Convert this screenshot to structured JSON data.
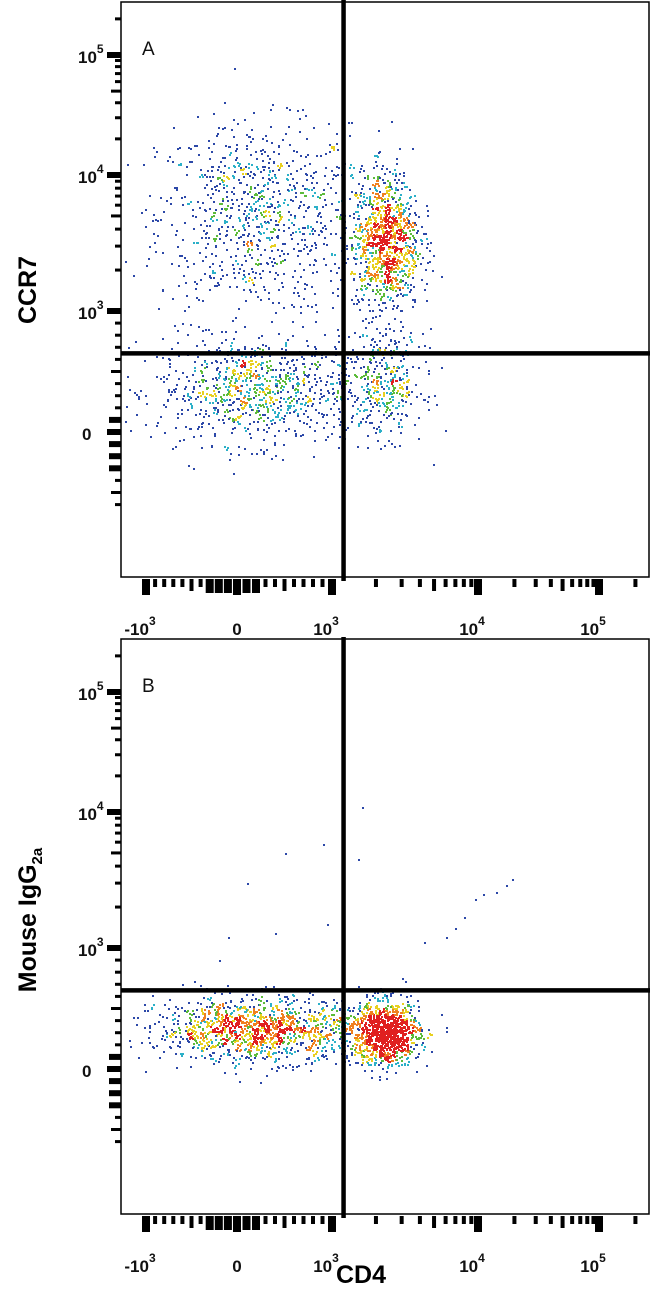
{
  "chart_data": [
    {
      "type": "scatter",
      "subtype": "flow-cytometry density dot plot",
      "panel_label": "A",
      "xlabel": "CD4",
      "ylabel": "CCR7",
      "x_scale": "biexponential",
      "y_scale": "biexponential",
      "x_ticks": [
        {
          "v": -1000,
          "base": "-10",
          "exp": "3"
        },
        {
          "v": 0,
          "base": "0",
          "exp": ""
        },
        {
          "v": 1000,
          "base": "10",
          "exp": "3"
        },
        {
          "v": 10000,
          "base": "10",
          "exp": "4"
        },
        {
          "v": 100000,
          "base": "10",
          "exp": "5"
        }
      ],
      "y_ticks": [
        {
          "v": 0,
          "base": "0",
          "exp": ""
        },
        {
          "v": 1000,
          "base": "10",
          "exp": "3"
        },
        {
          "v": 10000,
          "base": "10",
          "exp": "4"
        },
        {
          "v": 100000,
          "base": "10",
          "exp": "5"
        }
      ],
      "quadrant_gate": {
        "x": 1200,
        "y": 650
      },
      "populations": [
        {
          "x": 200,
          "y": 5000,
          "spread_x": 0.9,
          "spread_y": 0.28,
          "count": 900
        },
        {
          "x": 200,
          "y": 350,
          "spread_x": 0.9,
          "spread_y": 0.22,
          "count": 900
        },
        {
          "x": 2300,
          "y": 3300,
          "spread_x": 0.09,
          "spread_y": 0.2,
          "count": 1100
        },
        {
          "x": 2300,
          "y": 400,
          "spread_x": 0.1,
          "spread_y": 0.22,
          "count": 350
        }
      ]
    },
    {
      "type": "scatter",
      "subtype": "flow-cytometry density dot plot",
      "panel_label": "B",
      "xlabel": "CD4",
      "ylabel": "Mouse IgG",
      "ylabel_sub": "2a",
      "x_scale": "biexponential",
      "y_scale": "biexponential",
      "x_ticks": [
        {
          "v": -1000,
          "base": "-10",
          "exp": "3"
        },
        {
          "v": 0,
          "base": "0",
          "exp": ""
        },
        {
          "v": 1000,
          "base": "10",
          "exp": "3"
        },
        {
          "v": 10000,
          "base": "10",
          "exp": "4"
        },
        {
          "v": 100000,
          "base": "10",
          "exp": "5"
        }
      ],
      "y_ticks": [
        {
          "v": 0,
          "base": "0",
          "exp": ""
        },
        {
          "v": 1000,
          "base": "10",
          "exp": "3"
        },
        {
          "v": 10000,
          "base": "10",
          "exp": "4"
        },
        {
          "v": 100000,
          "base": "10",
          "exp": "5"
        }
      ],
      "quadrant_gate": {
        "x": 1200,
        "y": 650
      },
      "populations": [
        {
          "x": 200,
          "y": 330,
          "spread_x": 0.9,
          "spread_y": 0.13,
          "count": 1300
        },
        {
          "x": 2300,
          "y": 300,
          "spread_x": 0.09,
          "spread_y": 0.13,
          "count": 1100
        }
      ],
      "sparse_events": [
        [
          -200,
          900
        ],
        [
          -100,
          1200
        ],
        [
          100,
          3000
        ],
        [
          500,
          5000
        ],
        [
          900,
          5800
        ],
        [
          400,
          1300
        ],
        [
          950,
          1500
        ],
        [
          1600,
          11000
        ],
        [
          1500,
          4500
        ],
        [
          4300,
          1100
        ],
        [
          6000,
          1200
        ],
        [
          7000,
          1400
        ],
        [
          8000,
          1700
        ],
        [
          9500,
          2300
        ],
        [
          11000,
          2500
        ],
        [
          14000,
          2600
        ],
        [
          17000,
          2900
        ],
        [
          19000,
          3200
        ],
        [
          3000,
          750
        ]
      ]
    }
  ],
  "colors": {
    "low": "#2c48a8",
    "mid_low": "#2bb0c8",
    "mid": "#5cbb3a",
    "mid_high": "#e8d020",
    "high": "#f08020",
    "peak": "#e02020",
    "gate": "#000000"
  }
}
